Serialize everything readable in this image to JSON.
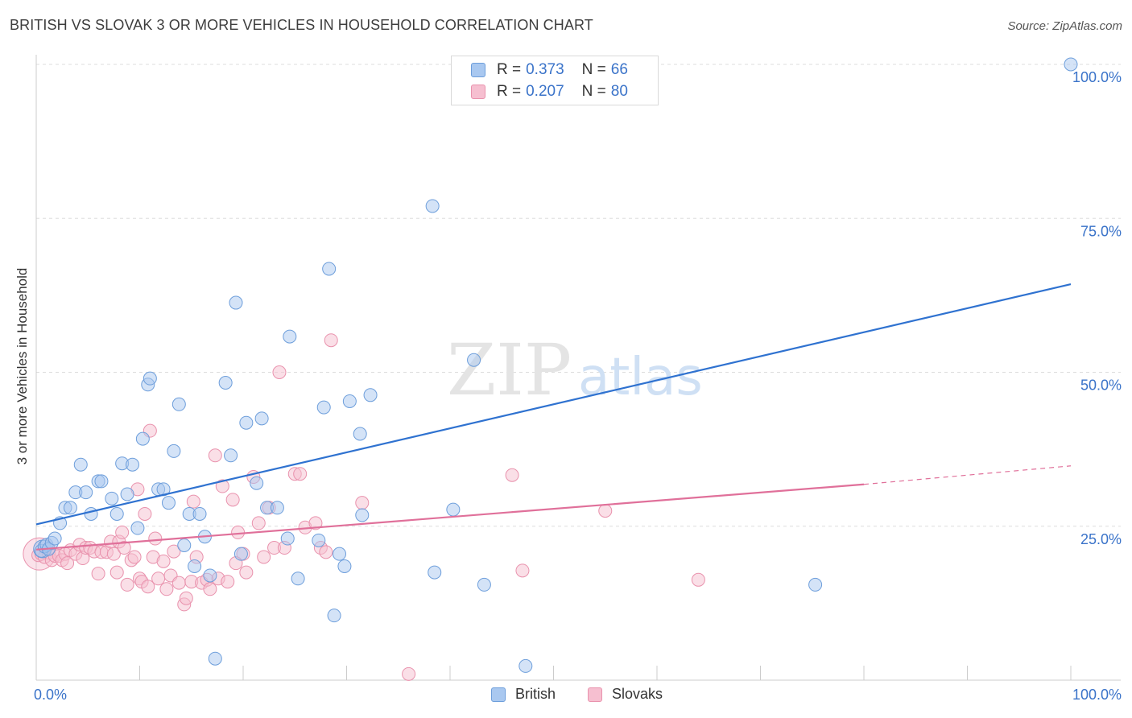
{
  "header": {
    "title": "BRITISH VS SLOVAK 3 OR MORE VEHICLES IN HOUSEHOLD CORRELATION CHART",
    "source": "Source: ZipAtlas.com"
  },
  "watermark": {
    "zip": "ZIP",
    "atlas": "atlas"
  },
  "legend": {
    "british": {
      "r_label": "R =",
      "r_value": "0.373",
      "n_label": "N =",
      "n_value": "66"
    },
    "slovaks": {
      "r_label": "R =",
      "r_value": "0.207",
      "n_label": "N =",
      "n_value": "80"
    }
  },
  "colors": {
    "british_fill": "#a9c8f0",
    "british_stroke": "#6d9edb",
    "british_line": "#2f72d0",
    "slovaks_fill": "#f6bfd0",
    "slovaks_stroke": "#e992ad",
    "slovaks_line": "#e0709a",
    "grid": "#dddddd",
    "tick_text": "#3a73c9"
  },
  "chart_data": {
    "type": "scatter",
    "title": "BRITISH VS SLOVAK 3 OR MORE VEHICLES IN HOUSEHOLD CORRELATION CHART",
    "xlabel": "",
    "ylabel": "3 or more Vehicles in Household",
    "xlim": [
      0,
      100
    ],
    "ylim": [
      0,
      100
    ],
    "x_tick_labels": [
      "0.0%",
      "100.0%"
    ],
    "y_ticks": [
      25,
      50,
      75,
      100
    ],
    "y_tick_labels": [
      "25.0%",
      "50.0%",
      "75.0%",
      "100.0%"
    ],
    "grid": true,
    "legend_position": "top-center",
    "series": [
      {
        "name": "British",
        "r": 0.373,
        "n": 66,
        "trend": {
          "x": [
            0,
            100
          ],
          "y": [
            25.3,
            64.3
          ]
        },
        "points": [
          [
            0.5,
            21
          ],
          [
            0.8,
            21.7
          ],
          [
            1,
            22
          ],
          [
            1.2,
            21.3
          ],
          [
            1.5,
            22.3
          ],
          [
            1.8,
            23
          ],
          [
            2.3,
            25.5
          ],
          [
            2.8,
            28
          ],
          [
            3.3,
            28
          ],
          [
            3.8,
            30.5
          ],
          [
            4.3,
            35
          ],
          [
            4.8,
            30.5
          ],
          [
            5.3,
            27
          ],
          [
            6,
            32.3
          ],
          [
            6.3,
            32.3
          ],
          [
            7.3,
            29.5
          ],
          [
            7.8,
            27
          ],
          [
            8.3,
            35.2
          ],
          [
            8.8,
            30.2
          ],
          [
            9.3,
            35
          ],
          [
            9.8,
            24.7
          ],
          [
            10.3,
            39.2
          ],
          [
            10.8,
            48
          ],
          [
            11,
            49
          ],
          [
            11.8,
            31
          ],
          [
            12.3,
            31
          ],
          [
            12.8,
            28.8
          ],
          [
            13.3,
            37.2
          ],
          [
            13.8,
            44.8
          ],
          [
            14.3,
            21.9
          ],
          [
            14.8,
            27
          ],
          [
            15.3,
            18.5
          ],
          [
            15.8,
            27
          ],
          [
            16.3,
            23.3
          ],
          [
            16.8,
            17
          ],
          [
            17.3,
            3.5
          ],
          [
            18.3,
            48.3
          ],
          [
            18.8,
            36.5
          ],
          [
            19.3,
            61.3
          ],
          [
            19.8,
            20.5
          ],
          [
            20.3,
            41.8
          ],
          [
            21.3,
            32
          ],
          [
            21.8,
            42.5
          ],
          [
            22.3,
            28
          ],
          [
            23.3,
            28
          ],
          [
            24.3,
            23
          ],
          [
            24.5,
            55.8
          ],
          [
            25.3,
            16.5
          ],
          [
            27.3,
            22.7
          ],
          [
            27.8,
            44.3
          ],
          [
            28.3,
            66.8
          ],
          [
            28.8,
            10.5
          ],
          [
            29.3,
            20.5
          ],
          [
            29.8,
            18.5
          ],
          [
            30.3,
            45.3
          ],
          [
            31.3,
            40
          ],
          [
            31.5,
            26.8
          ],
          [
            32.3,
            46.3
          ],
          [
            38.3,
            77
          ],
          [
            38.5,
            17.5
          ],
          [
            40.3,
            27.7
          ],
          [
            42.3,
            52
          ],
          [
            43.3,
            15.5
          ],
          [
            47.3,
            2.3
          ],
          [
            75.3,
            15.5
          ],
          [
            100,
            100
          ]
        ]
      },
      {
        "name": "Slovaks",
        "r": 0.207,
        "n": 80,
        "trend": {
          "x": [
            0,
            80
          ],
          "y": [
            21.2,
            31.8
          ]
        },
        "trend_dashed": {
          "x": [
            80,
            100
          ],
          "y": [
            31.8,
            34.8
          ]
        },
        "points": [
          [
            0.2,
            20.3
          ],
          [
            0.5,
            20.5
          ],
          [
            0.8,
            20
          ],
          [
            1.2,
            20.7
          ],
          [
            1.5,
            19.5
          ],
          [
            1.8,
            20.2
          ],
          [
            2.2,
            20.2
          ],
          [
            2.5,
            19.5
          ],
          [
            2.8,
            20.5
          ],
          [
            3,
            19
          ],
          [
            3.3,
            21.1
          ],
          [
            3.8,
            20.5
          ],
          [
            4.2,
            22
          ],
          [
            4.5,
            19.8
          ],
          [
            4.8,
            21.5
          ],
          [
            5.2,
            21.5
          ],
          [
            5.6,
            20.9
          ],
          [
            6,
            17.3
          ],
          [
            6.3,
            20.8
          ],
          [
            6.8,
            20.8
          ],
          [
            7.2,
            22.5
          ],
          [
            7.5,
            20.5
          ],
          [
            7.8,
            17.5
          ],
          [
            8,
            22.5
          ],
          [
            8.3,
            24
          ],
          [
            8.5,
            21.5
          ],
          [
            8.8,
            15.5
          ],
          [
            9.2,
            19.5
          ],
          [
            9.5,
            20
          ],
          [
            9.8,
            31
          ],
          [
            10,
            16.5
          ],
          [
            10.2,
            16
          ],
          [
            10.5,
            27
          ],
          [
            10.8,
            15.2
          ],
          [
            11,
            40.5
          ],
          [
            11.3,
            20
          ],
          [
            11.5,
            23
          ],
          [
            11.8,
            16.5
          ],
          [
            12.3,
            19.3
          ],
          [
            12.6,
            14.8
          ],
          [
            13,
            17
          ],
          [
            13.3,
            20.9
          ],
          [
            13.8,
            15.8
          ],
          [
            14.3,
            12.3
          ],
          [
            14.5,
            13.3
          ],
          [
            15,
            16
          ],
          [
            15.5,
            20
          ],
          [
            16,
            15.8
          ],
          [
            16.5,
            16.3
          ],
          [
            16.8,
            14.8
          ],
          [
            17.3,
            36.5
          ],
          [
            17.6,
            16.5
          ],
          [
            18,
            31.5
          ],
          [
            18.5,
            16
          ],
          [
            19,
            29.3
          ],
          [
            19.5,
            24
          ],
          [
            20,
            20.5
          ],
          [
            20.3,
            17.5
          ],
          [
            21,
            33
          ],
          [
            21.5,
            25.5
          ],
          [
            22,
            20
          ],
          [
            22.5,
            28
          ],
          [
            23,
            21.5
          ],
          [
            23.5,
            50
          ],
          [
            24,
            21.5
          ],
          [
            25,
            33.5
          ],
          [
            25.5,
            33.5
          ],
          [
            26,
            24.8
          ],
          [
            27,
            25.5
          ],
          [
            27.5,
            21.5
          ],
          [
            28,
            20.8
          ],
          [
            28.5,
            55.2
          ],
          [
            31.5,
            28.8
          ],
          [
            36,
            1
          ],
          [
            46,
            33.3
          ],
          [
            47,
            17.8
          ],
          [
            64,
            16.3
          ],
          [
            55,
            27.5
          ],
          [
            15.2,
            29
          ],
          [
            19.3,
            19
          ]
        ]
      }
    ]
  },
  "bottom_legend": {
    "british_label": "British",
    "slovaks_label": "Slovaks"
  }
}
